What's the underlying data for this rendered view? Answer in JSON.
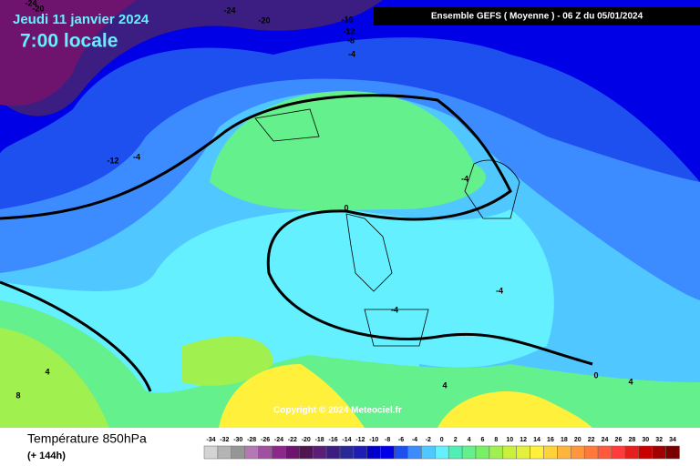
{
  "header": {
    "date": "Jeudi 11 janvier 2024",
    "time": "7:00 locale",
    "run": "Ensemble GEFS  ( Moyenne )  -  06 Z du 05/01/2024"
  },
  "copyright": "Copyright © 2024 Meteociel.fr",
  "footer": {
    "title": "Température 850hPa",
    "subtitle": "(+ 144h)"
  },
  "map_labels": [
    "-24",
    "-20",
    "-24",
    "-20",
    "-16",
    "-12",
    "-8",
    "-4",
    "-12",
    "-4",
    "0",
    "-4",
    "-4",
    "-4",
    "0",
    "4",
    "4",
    "4",
    "8"
  ],
  "legend": {
    "values": [
      -34,
      -32,
      -30,
      -28,
      -26,
      -24,
      -22,
      -20,
      -18,
      -16,
      -14,
      -12,
      -10,
      -8,
      -6,
      -4,
      -2,
      0,
      2,
      4,
      6,
      8,
      10,
      12,
      14,
      16,
      18,
      20,
      22,
      24,
      26,
      28,
      30,
      32,
      34
    ],
    "colors": [
      "#d4d4d4",
      "#b4b4b4",
      "#969696",
      "#b478b4",
      "#a050a0",
      "#8c288c",
      "#6e146e",
      "#501450",
      "#5a1e78",
      "#3c1e82",
      "#282896",
      "#1e1eb4",
      "#0000c8",
      "#0000e6",
      "#1e50f0",
      "#3c8cff",
      "#50c8ff",
      "#64f0ff",
      "#50f0b4",
      "#64f08c",
      "#78f064",
      "#a0f050",
      "#c8f03c",
      "#e6f03c",
      "#fff03c",
      "#ffd23c",
      "#ffb43c",
      "#ff963c",
      "#ff783c",
      "#ff5a3c",
      "#ff3c3c",
      "#e61e1e",
      "#c80000",
      "#a00000",
      "#780000"
    ]
  }
}
